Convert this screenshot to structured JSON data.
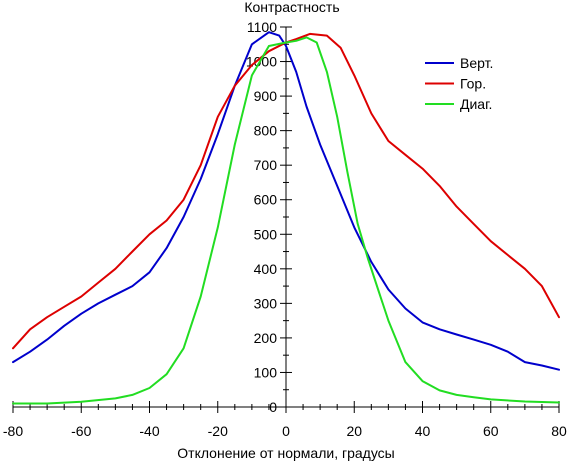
{
  "chart_data": {
    "type": "line",
    "ylabel": "Контрастность",
    "xlabel": "Отклонение от нормали, градусы",
    "xlim": [
      -80,
      80
    ],
    "ylim": [
      0,
      1100
    ],
    "x_ticks": [
      -80,
      -60,
      -40,
      -20,
      0,
      20,
      40,
      60,
      80
    ],
    "y_ticks": [
      0,
      100,
      200,
      300,
      400,
      500,
      600,
      700,
      800,
      900,
      1000,
      1100
    ],
    "x_minor_step": 5,
    "y_minor_step": 50,
    "grid": false,
    "legend_position": "top-right",
    "series": [
      {
        "name": "Верт.",
        "color": "#0000cc",
        "points": [
          [
            -80,
            130
          ],
          [
            -75,
            160
          ],
          [
            -70,
            195
          ],
          [
            -65,
            235
          ],
          [
            -60,
            270
          ],
          [
            -55,
            300
          ],
          [
            -50,
            325
          ],
          [
            -45,
            350
          ],
          [
            -40,
            390
          ],
          [
            -35,
            460
          ],
          [
            -30,
            550
          ],
          [
            -25,
            660
          ],
          [
            -20,
            790
          ],
          [
            -15,
            930
          ],
          [
            -10,
            1050
          ],
          [
            -5,
            1085
          ],
          [
            -2,
            1075
          ],
          [
            0,
            1045
          ],
          [
            3,
            970
          ],
          [
            6,
            870
          ],
          [
            10,
            760
          ],
          [
            15,
            640
          ],
          [
            20,
            520
          ],
          [
            25,
            420
          ],
          [
            30,
            340
          ],
          [
            35,
            285
          ],
          [
            40,
            245
          ],
          [
            45,
            225
          ],
          [
            50,
            210
          ],
          [
            55,
            195
          ],
          [
            60,
            180
          ],
          [
            65,
            160
          ],
          [
            70,
            130
          ],
          [
            75,
            120
          ],
          [
            80,
            108
          ]
        ]
      },
      {
        "name": "Гор.",
        "color": "#dd0000",
        "points": [
          [
            -80,
            170
          ],
          [
            -75,
            225
          ],
          [
            -70,
            260
          ],
          [
            -65,
            290
          ],
          [
            -60,
            320
          ],
          [
            -55,
            360
          ],
          [
            -50,
            400
          ],
          [
            -45,
            450
          ],
          [
            -40,
            500
          ],
          [
            -35,
            540
          ],
          [
            -30,
            600
          ],
          [
            -25,
            700
          ],
          [
            -20,
            840
          ],
          [
            -15,
            930
          ],
          [
            -10,
            990
          ],
          [
            -5,
            1030
          ],
          [
            0,
            1055
          ],
          [
            3,
            1065
          ],
          [
            7,
            1080
          ],
          [
            12,
            1075
          ],
          [
            16,
            1040
          ],
          [
            20,
            960
          ],
          [
            25,
            850
          ],
          [
            30,
            770
          ],
          [
            35,
            730
          ],
          [
            40,
            690
          ],
          [
            45,
            640
          ],
          [
            50,
            580
          ],
          [
            55,
            530
          ],
          [
            60,
            480
          ],
          [
            65,
            440
          ],
          [
            70,
            400
          ],
          [
            75,
            350
          ],
          [
            80,
            260
          ]
        ]
      },
      {
        "name": "Диаг.",
        "color": "#22dd22",
        "points": [
          [
            -80,
            10
          ],
          [
            -70,
            10
          ],
          [
            -60,
            15
          ],
          [
            -50,
            25
          ],
          [
            -45,
            35
          ],
          [
            -40,
            55
          ],
          [
            -35,
            95
          ],
          [
            -30,
            170
          ],
          [
            -25,
            320
          ],
          [
            -20,
            520
          ],
          [
            -15,
            760
          ],
          [
            -10,
            960
          ],
          [
            -5,
            1045
          ],
          [
            0,
            1055
          ],
          [
            3,
            1060
          ],
          [
            6,
            1070
          ],
          [
            9,
            1055
          ],
          [
            12,
            970
          ],
          [
            15,
            840
          ],
          [
            18,
            680
          ],
          [
            21,
            530
          ],
          [
            24,
            430
          ],
          [
            27,
            340
          ],
          [
            30,
            250
          ],
          [
            35,
            130
          ],
          [
            40,
            75
          ],
          [
            45,
            48
          ],
          [
            50,
            35
          ],
          [
            55,
            28
          ],
          [
            60,
            22
          ],
          [
            70,
            16
          ],
          [
            80,
            13
          ]
        ]
      }
    ]
  }
}
